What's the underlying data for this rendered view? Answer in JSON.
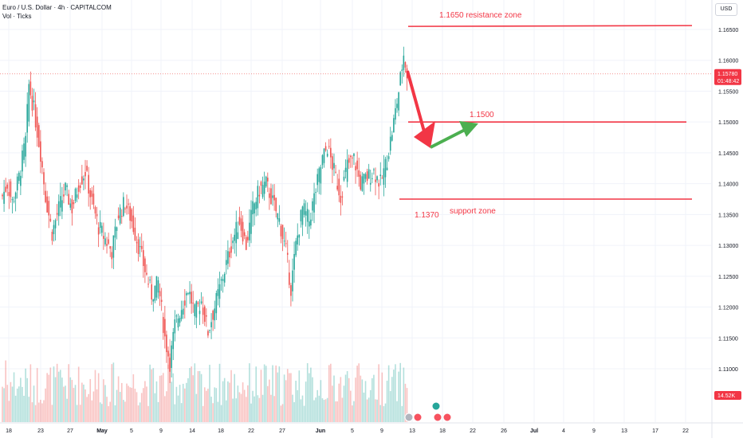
{
  "legend": {
    "symbol": "Euro / U.S. Dollar · 4h · CAPITALCOM",
    "volume": "Vol · Ticks"
  },
  "currency_button": "USD",
  "price_axis": {
    "ticks": [
      "1.16500",
      "1.16000",
      "1.15500",
      "1.15000",
      "1.14500",
      "1.14000",
      "1.13500",
      "1.13000",
      "1.12500",
      "1.12000",
      "1.11500",
      "1.11000"
    ],
    "current_price": "1.15780",
    "countdown": "01:48:42",
    "volume_tag": "14.52K"
  },
  "time_axis": {
    "ticks": [
      "18",
      "23",
      "27",
      "May",
      "5",
      "9",
      "14",
      "18",
      "22",
      "27",
      "Jun",
      "5",
      "9",
      "13",
      "18",
      "22",
      "26",
      "Jul",
      "4",
      "9",
      "13",
      "17",
      "22"
    ]
  },
  "annotations": {
    "resistance_label": "1.1650 resistance zone",
    "mid_label": "1.1500",
    "support_price_label": "1.1370",
    "support_label": "support zone"
  },
  "colors": {
    "up": "#26a69a",
    "down": "#ef5350",
    "drawing": "#f23645",
    "arrow_down": "#f23645",
    "arrow_up": "#4caf50",
    "price_tag": "#f23645"
  },
  "chart_data": {
    "type": "candlestick",
    "instrument": "Euro / U.S. Dollar",
    "timeframe": "4h",
    "ylim": [
      1.1055,
      1.168
    ],
    "levels": [
      1.1655,
      1.15,
      1.1375
    ],
    "current_price": 1.1578,
    "anchors": [
      [
        0,
        1.138
      ],
      [
        3,
        1.14
      ],
      [
        6,
        1.137
      ],
      [
        10,
        1.141
      ],
      [
        14,
        1.147
      ],
      [
        16,
        1.156
      ],
      [
        19,
        1.152
      ],
      [
        23,
        1.145
      ],
      [
        26,
        1.138
      ],
      [
        30,
        1.132
      ],
      [
        34,
        1.136
      ],
      [
        38,
        1.139
      ],
      [
        42,
        1.136
      ],
      [
        46,
        1.14
      ],
      [
        50,
        1.142
      ],
      [
        54,
        1.137
      ],
      [
        58,
        1.133
      ],
      [
        62,
        1.131
      ],
      [
        66,
        1.129
      ],
      [
        70,
        1.135
      ],
      [
        74,
        1.137
      ],
      [
        78,
        1.134
      ],
      [
        82,
        1.13
      ],
      [
        86,
        1.126
      ],
      [
        90,
        1.122
      ],
      [
        94,
        1.124
      ],
      [
        98,
        1.115
      ],
      [
        101,
        1.111
      ],
      [
        104,
        1.117
      ],
      [
        108,
        1.12
      ],
      [
        112,
        1.123
      ],
      [
        116,
        1.119
      ],
      [
        120,
        1.121
      ],
      [
        124,
        1.116
      ],
      [
        127,
        1.119
      ],
      [
        131,
        1.123
      ],
      [
        135,
        1.127
      ],
      [
        139,
        1.131
      ],
      [
        143,
        1.134
      ],
      [
        147,
        1.13
      ],
      [
        151,
        1.136
      ],
      [
        155,
        1.139
      ],
      [
        159,
        1.14
      ],
      [
        163,
        1.137
      ],
      [
        167,
        1.134
      ],
      [
        171,
        1.129
      ],
      [
        174,
        1.123
      ],
      [
        177,
        1.13
      ],
      [
        181,
        1.136
      ],
      [
        185,
        1.134
      ],
      [
        189,
        1.139
      ],
      [
        193,
        1.144
      ],
      [
        196,
        1.146
      ],
      [
        200,
        1.142
      ],
      [
        204,
        1.138
      ],
      [
        208,
        1.143
      ],
      [
        212,
        1.144
      ],
      [
        216,
        1.14
      ],
      [
        220,
        1.141
      ],
      [
        224,
        1.142
      ],
      [
        228,
        1.14
      ],
      [
        232,
        1.144
      ],
      [
        236,
        1.15
      ],
      [
        239,
        1.155
      ],
      [
        242,
        1.161
      ],
      [
        244,
        1.1578
      ]
    ]
  }
}
